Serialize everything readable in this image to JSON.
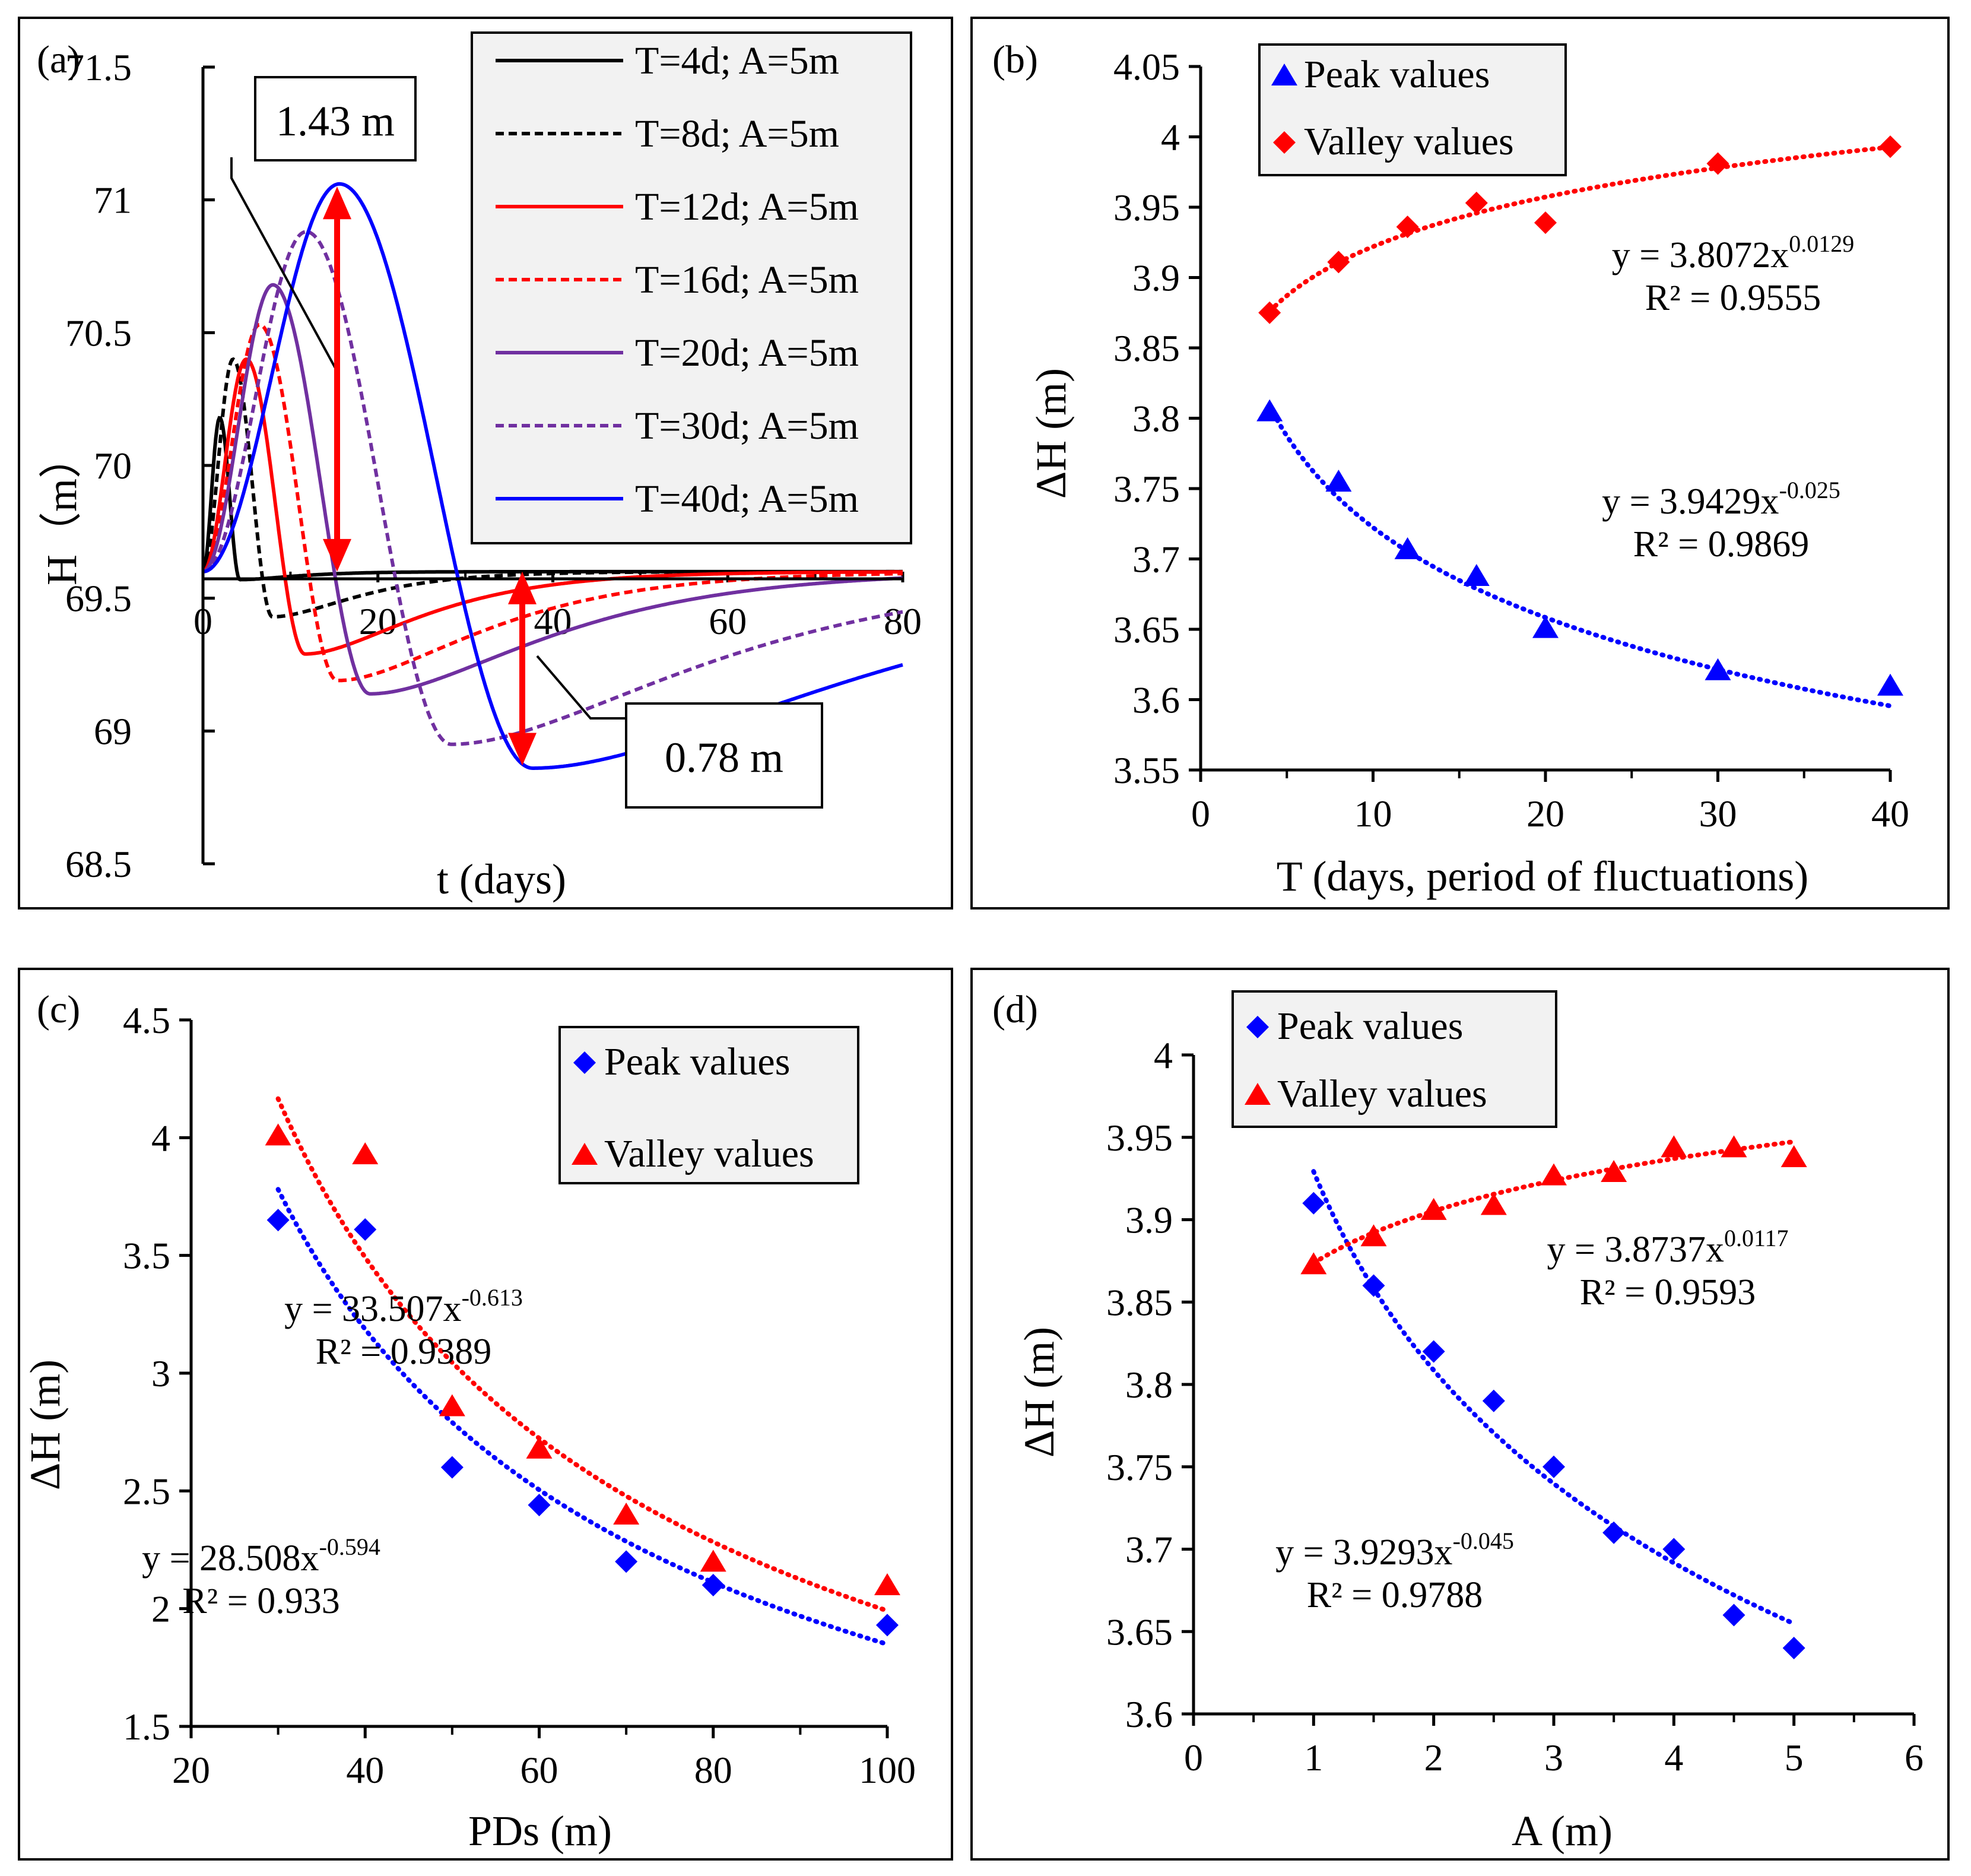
{
  "chart_data": [
    {
      "panel": "(a)",
      "type": "line",
      "xlabel": "t (days)",
      "ylabel": "H（m）",
      "xlim": [
        0,
        80
      ],
      "ylim": [
        68.5,
        71.5
      ],
      "xticks": [
        "0",
        "20",
        "40",
        "60",
        "80"
      ],
      "yticks": [
        "68.5",
        "69",
        "69.5",
        "70",
        "70.5",
        "71",
        "71.5"
      ],
      "baseline": 69.6,
      "series": [
        {
          "name": "T=4d; A=5m",
          "T": 4,
          "peak": 70.18,
          "valley": 69.57,
          "color": "#000000",
          "dash": false
        },
        {
          "name": "T=8d; A=5m",
          "T": 8,
          "peak": 70.4,
          "valley": 69.43,
          "color": "#000000",
          "dash": true
        },
        {
          "name": "T=12d; A=5m",
          "T": 12,
          "peak": 70.4,
          "valley": 69.29,
          "color": "#ff0000",
          "dash": false
        },
        {
          "name": "T=16d; A=5m",
          "T": 16,
          "peak": 70.53,
          "valley": 69.19,
          "color": "#ff0000",
          "dash": true
        },
        {
          "name": "T=20d; A=5m",
          "T": 20,
          "peak": 70.68,
          "valley": 69.14,
          "color": "#7030a0",
          "dash": false
        },
        {
          "name": "T=30d; A=5m",
          "T": 30,
          "peak": 70.88,
          "valley": 68.95,
          "color": "#7030a0",
          "dash": true
        },
        {
          "name": "T=40d; A=5m",
          "T": 40,
          "peak": 71.06,
          "valley": 68.86,
          "color": "#0000ff",
          "dash": false
        }
      ],
      "annotations": [
        "1.43 m",
        "0.78 m"
      ]
    },
    {
      "panel": "(b)",
      "type": "scatter",
      "xlabel": "T (days, period of fluctuations)",
      "ylabel": "ΔH (m)",
      "xlim": [
        0,
        40
      ],
      "ylim": [
        3.55,
        4.05
      ],
      "xticks": [
        "0",
        "10",
        "20",
        "30",
        "40"
      ],
      "yticks": [
        "3.55",
        "3.6",
        "3.65",
        "3.7",
        "3.75",
        "3.8",
        "3.85",
        "3.9",
        "3.95",
        "4",
        "4.05"
      ],
      "series": [
        {
          "name": "Peak values",
          "marker": "triangle",
          "color": "#0000ff",
          "x": [
            4,
            8,
            12,
            16,
            20,
            30,
            40
          ],
          "y": [
            3.805,
            3.755,
            3.707,
            3.688,
            3.651,
            3.621,
            3.61
          ],
          "fit": {
            "a": 3.9429,
            "b": -0.025
          }
        },
        {
          "name": "Valley values",
          "marker": "diamond",
          "color": "#ff0000",
          "x": [
            4,
            8,
            12,
            16,
            20,
            30,
            40
          ],
          "y": [
            3.875,
            3.911,
            3.936,
            3.953,
            3.939,
            3.981,
            3.993
          ],
          "fit": {
            "a": 3.8072,
            "b": 0.0129
          }
        }
      ],
      "equations": [
        {
          "base": "y = 3.8072x",
          "exp": "0.0129",
          "r2": "R² = 0.9555"
        },
        {
          "base": "y = 3.9429x",
          "exp": "-0.025",
          "r2": "R² = 0.9869"
        }
      ]
    },
    {
      "panel": "(c)",
      "type": "scatter",
      "xlabel": "PDs (m)",
      "ylabel": "ΔH (m)",
      "xlim": [
        20,
        100
      ],
      "ylim": [
        1.5,
        4.5
      ],
      "xticks": [
        "20",
        "40",
        "60",
        "80",
        "100"
      ],
      "yticks": [
        "1.5",
        "2",
        "2.5",
        "3",
        "3.5",
        "4",
        "4.5"
      ],
      "series": [
        {
          "name": "Peak values",
          "marker": "diamond",
          "color": "#0000ff",
          "x": [
            30,
            40,
            50,
            60,
            70,
            80,
            100
          ],
          "y": [
            3.65,
            3.61,
            2.6,
            2.44,
            2.2,
            2.1,
            1.93
          ],
          "fit": {
            "a": 28.508,
            "b": -0.594
          }
        },
        {
          "name": "Valley values",
          "marker": "triangle",
          "color": "#ff0000",
          "x": [
            30,
            40,
            50,
            60,
            70,
            80,
            100
          ],
          "y": [
            4.01,
            3.93,
            2.86,
            2.68,
            2.4,
            2.2,
            2.1
          ],
          "fit": {
            "a": 33.507,
            "b": -0.613
          }
        }
      ],
      "equations": [
        {
          "base": "y = 33.507x",
          "exp": "-0.613",
          "r2": "R² = 0.9389"
        },
        {
          "base": "y = 28.508x",
          "exp": "-0.594",
          "r2": "R² = 0.933"
        }
      ]
    },
    {
      "panel": "(d)",
      "type": "scatter",
      "xlabel": "A (m)",
      "ylabel": "ΔH (m)",
      "xlim": [
        0,
        6
      ],
      "ylim": [
        3.6,
        4.0
      ],
      "xticks": [
        "0",
        "1",
        "2",
        "3",
        "4",
        "5",
        "6"
      ],
      "yticks": [
        "3.6",
        "3.65",
        "3.7",
        "3.75",
        "3.8",
        "3.85",
        "3.9",
        "3.95",
        "4"
      ],
      "series": [
        {
          "name": "Peak values",
          "marker": "diamond",
          "color": "#0000ff",
          "x": [
            1,
            1.5,
            2,
            2.5,
            3,
            3.5,
            4,
            4.5,
            5
          ],
          "y": [
            3.91,
            3.86,
            3.82,
            3.79,
            3.75,
            3.71,
            3.7,
            3.66,
            3.64
          ],
          "fit": {
            "a": 3.9293,
            "b": -0.045
          }
        },
        {
          "name": "Valley values",
          "marker": "triangle",
          "color": "#ff0000",
          "x": [
            1,
            1.5,
            2,
            2.5,
            3,
            3.5,
            4,
            4.5,
            5
          ],
          "y": [
            3.873,
            3.89,
            3.906,
            3.909,
            3.927,
            3.929,
            3.944,
            3.944,
            3.938
          ],
          "fit": {
            "a": 3.8737,
            "b": 0.0117
          }
        }
      ],
      "equations": [
        {
          "base": "y = 3.8737x",
          "exp": "0.0117",
          "r2": "R² = 0.9593"
        },
        {
          "base": "y = 3.9293x",
          "exp": "-0.045",
          "r2": "R² = 0.9788"
        }
      ]
    }
  ]
}
